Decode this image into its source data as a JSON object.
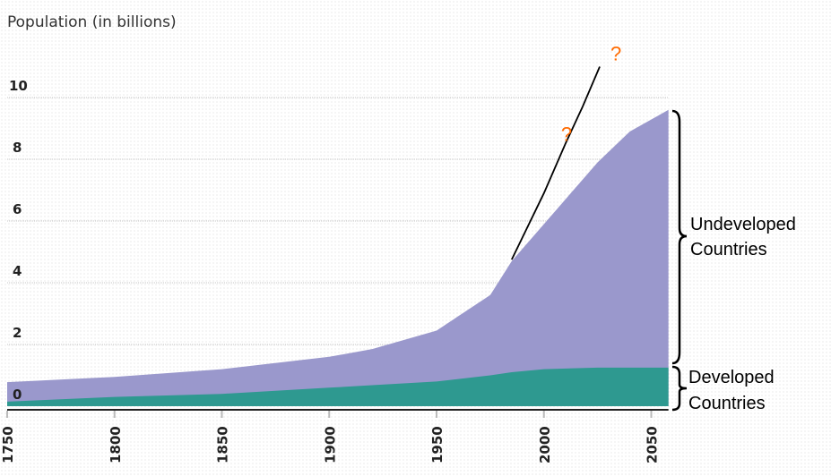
{
  "chart_data": {
    "type": "area",
    "title": "Population (in billions)",
    "xlim": [
      1750,
      2058
    ],
    "ylim": [
      0,
      10
    ],
    "x_ticks": [
      1750,
      1800,
      1850,
      1900,
      1950,
      2000,
      2050
    ],
    "y_ticks": [
      0,
      2,
      4,
      6,
      8,
      10
    ],
    "grid": true,
    "stacked": true,
    "x": [
      1750,
      1800,
      1850,
      1900,
      1920,
      1950,
      1975,
      1985,
      2000,
      2025,
      2040,
      2058
    ],
    "series": [
      {
        "name": "Developed Countries",
        "color": "#2e9990",
        "values": [
          0.15,
          0.3,
          0.4,
          0.6,
          0.68,
          0.8,
          1.0,
          1.1,
          1.2,
          1.25,
          1.25,
          1.25
        ]
      },
      {
        "name": "Undeveloped Countries",
        "color": "#9a98cc",
        "total_values": [
          0.78,
          0.95,
          1.2,
          1.6,
          1.85,
          2.45,
          3.6,
          4.7,
          5.9,
          7.9,
          8.9,
          9.6
        ]
      }
    ],
    "annotations": {
      "projection_curve": {
        "color": "#000000",
        "x": [
          1985,
          2000,
          2010,
          2018,
          2026
        ],
        "y": [
          4.75,
          6.9,
          8.5,
          9.7,
          11.0
        ]
      },
      "question_marks": [
        {
          "text": "?",
          "x": 2008,
          "y": 8.6
        },
        {
          "text": "?",
          "x": 2031,
          "y": 11.2
        }
      ],
      "question_color": "#ff6a00",
      "brace_labels": [
        {
          "lines": [
            "Undeveloped",
            "Countries"
          ]
        },
        {
          "lines": [
            "Developed",
            "Countries"
          ]
        }
      ]
    }
  }
}
